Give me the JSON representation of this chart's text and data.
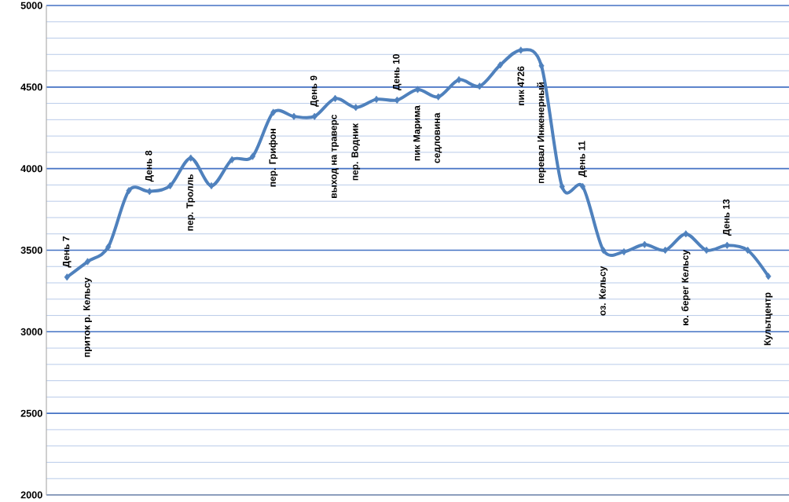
{
  "chart_data": {
    "type": "line",
    "categories": [
      null,
      null,
      null,
      null,
      null,
      null,
      null,
      null,
      null,
      null,
      null,
      null,
      null,
      null,
      null,
      null,
      null,
      null,
      null,
      null,
      null,
      null,
      null,
      null,
      null,
      null,
      null,
      null,
      null,
      null,
      null,
      null,
      null,
      null,
      null
    ],
    "series": [
      {
        "color": "#4f81bd",
        "values": [
          3335,
          3430,
          3520,
          3865,
          3860,
          3895,
          4065,
          3895,
          4055,
          4075,
          4345,
          4320,
          4320,
          4430,
          4375,
          4425,
          4420,
          4485,
          4440,
          4545,
          4505,
          4635,
          4726,
          4630,
          3890,
          3890,
          3500,
          3490,
          3535,
          3500,
          3600,
          3500,
          3530,
          3500,
          3340
        ],
        "value_labels": [
          "День 7",
          "приток  р.  Кельсу",
          null,
          null,
          "День 8",
          null,
          "пер.  Тролль",
          null,
          null,
          null,
          "пер.  Грифон",
          null,
          "День 9",
          "выход  на  траверс",
          "пер. Водник",
          null,
          "День 10",
          "пик  Марима",
          "седловина",
          null,
          null,
          null,
          "пик 4726",
          "перевал  Инженерный",
          null,
          "День 11",
          "оз.  Кельсу",
          null,
          null,
          null,
          "ю.  берег Кельсу",
          null,
          "День 13",
          null,
          "Культцентр"
        ]
      }
    ],
    "ylim": [
      2000,
      5000
    ],
    "yticks": [
      2000,
      {
        "value": 2100,
        "label": null
      },
      {
        "value": 2200,
        "label": null
      },
      {
        "value": 2300,
        "label": null
      },
      {
        "value": 2400,
        "label": null
      },
      2500,
      {
        "value": 2600,
        "label": null
      },
      {
        "value": 2700,
        "label": null
      },
      {
        "value": 2800,
        "label": null
      },
      {
        "value": 2900,
        "label": null
      },
      3000,
      {
        "value": 3100,
        "label": null
      },
      {
        "value": 3200,
        "label": null
      },
      {
        "value": 3300,
        "label": null
      },
      {
        "value": 3400,
        "label": null
      },
      3500,
      {
        "value": 3600,
        "label": null
      },
      {
        "value": 3700,
        "label": null
      },
      {
        "value": 3800,
        "label": null
      },
      {
        "value": 3900,
        "label": null
      },
      4000,
      {
        "value": 4100,
        "label": null
      },
      {
        "value": 4200,
        "label": null
      },
      {
        "value": 4300,
        "label": null
      },
      {
        "value": 4400,
        "label": null
      },
      4500,
      {
        "value": 4600,
        "label": null
      },
      {
        "value": 4700,
        "label": null
      },
      {
        "value": 4800,
        "label": null
      },
      {
        "value": 4900,
        "label": null
      },
      5000
    ],
    "grid": "y",
    "marker": "diamond",
    "line_style": "solid",
    "tick_labels": "y"
  }
}
